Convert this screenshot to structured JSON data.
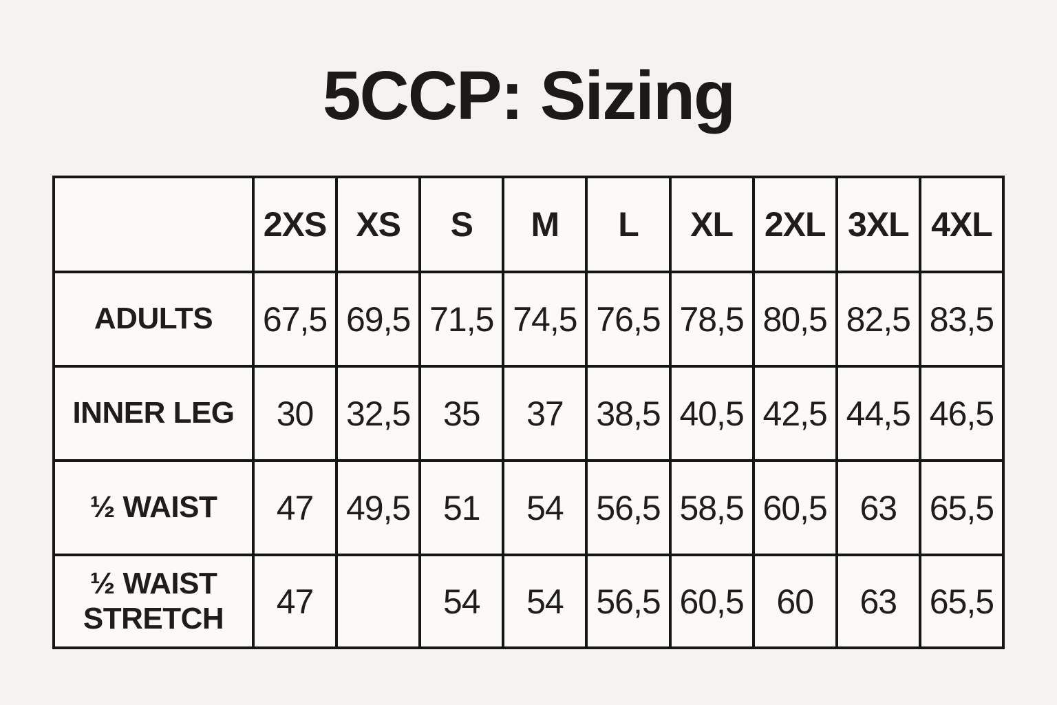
{
  "title": "5CCP: Sizing",
  "colors": {
    "page_background": "#f5f3ef",
    "cell_background": "#fbfaf7",
    "border": "#161616",
    "text": "#1e1d1b"
  },
  "table": {
    "columns": [
      "",
      "2XS",
      "XS",
      "S",
      "M",
      "L",
      "XL",
      "2XL",
      "3XL",
      "4XL"
    ],
    "rows": [
      {
        "label": "ADULTS",
        "values": [
          "67,5",
          "69,5",
          "71,5",
          "74,5",
          "76,5",
          "78,5",
          "80,5",
          "82,5",
          "83,5"
        ]
      },
      {
        "label": "INNER LEG",
        "values": [
          "30",
          "32,5",
          "35",
          "37",
          "38,5",
          "40,5",
          "42,5",
          "44,5",
          "46,5"
        ]
      },
      {
        "label": "½ WAIST",
        "values": [
          "47",
          "49,5",
          "51",
          "54",
          "56,5",
          "58,5",
          "60,5",
          "63",
          "65,5"
        ]
      },
      {
        "label": "½ WAIST STRETCH",
        "values": [
          "47",
          "",
          "54",
          "54",
          "56,5",
          "60,5",
          "60",
          "63",
          "65,5"
        ]
      }
    ]
  },
  "chart_data": {
    "type": "table",
    "title": "5CCP: Sizing",
    "categories": [
      "2XS",
      "XS",
      "S",
      "M",
      "L",
      "XL",
      "2XL",
      "3XL",
      "4XL"
    ],
    "series": [
      {
        "name": "ADULTS",
        "values": [
          67.5,
          69.5,
          71.5,
          74.5,
          76.5,
          78.5,
          80.5,
          82.5,
          83.5
        ]
      },
      {
        "name": "INNER LEG",
        "values": [
          30,
          32.5,
          35,
          37,
          38.5,
          40.5,
          42.5,
          44.5,
          46.5
        ]
      },
      {
        "name": "½ WAIST",
        "values": [
          47,
          49.5,
          51,
          54,
          56.5,
          58.5,
          60.5,
          63,
          65.5
        ]
      },
      {
        "name": "½ WAIST STRETCH",
        "values": [
          47,
          null,
          54,
          54,
          56.5,
          60.5,
          60,
          63,
          65.5
        ]
      }
    ],
    "decimal_separator": ",",
    "grid": true,
    "notes": "Empty cell at XS column of ½ WAIST STRETCH row"
  }
}
